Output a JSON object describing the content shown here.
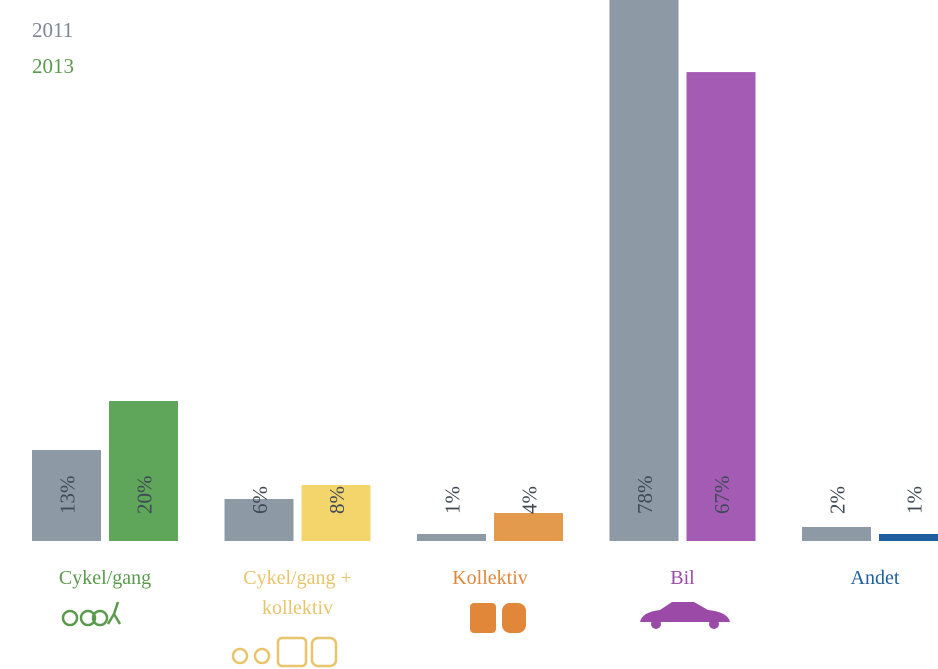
{
  "chart_data": {
    "type": "bar",
    "categories": [
      "Cykel/gang",
      "Cykel/gang + kollektiv",
      "Kollektiv",
      "Bil",
      "Andet"
    ],
    "series": [
      {
        "name": "2011",
        "color": "#8e99a6",
        "values": [
          13,
          6,
          1,
          78,
          2
        ],
        "value_labels": [
          "13%",
          "6%",
          "1%",
          "78%",
          "2%"
        ]
      },
      {
        "name": "2013",
        "color": "#5fa55a",
        "colors": [
          "#5fa55a",
          "#f4d56c",
          "#e39a4c",
          "#a45bb4",
          "#1f5f9f"
        ],
        "values": [
          20,
          8,
          4,
          67,
          1
        ],
        "value_labels": [
          "20%",
          "8%",
          "4%",
          "67%",
          "1%"
        ]
      }
    ],
    "category_colors": [
      "#5a9a4c",
      "#e8c46a",
      "#e0873a",
      "#9b4aa8",
      "#1f5f9f"
    ],
    "legend_colors": [
      "#7d8794",
      "#5a9a4c"
    ],
    "ylim": [
      0,
      77.3
    ]
  }
}
